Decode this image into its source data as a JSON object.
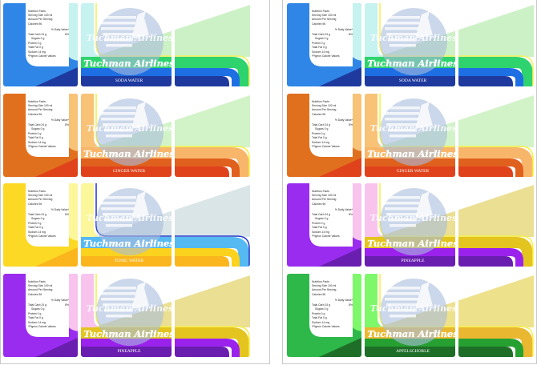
{
  "brand": "Tuchman Airlines",
  "nutrition": {
    "title": "Nutrition Facts",
    "serving": "Serving Size 100 ml",
    "amount": "Amount Per Serving",
    "calories": "Calories 96",
    "daily_value": "% Daily Value*",
    "carb": "Total Carb 24  g",
    "carb_pct": "8%",
    "sugars": "Sugars  0  g",
    "protein": "Protein 0  g",
    "fat": "Total Fat 0 g",
    "sodium": "Sodium 14  mg",
    "footnote": "*Pigeon Calorie Values"
  },
  "labels": [
    {
      "flavor": "SODA WATER",
      "colors": {
        "main": "#2f86e6",
        "light": "#c6f2f0",
        "accent": "#f4f25a",
        "band1": "#2ed36e",
        "band2": "#1f6fe4",
        "dark": "#1f3a9e",
        "tri": "#c8f0c0"
      }
    },
    {
      "flavor": "SODA WATER",
      "colors": {
        "main": "#2f86e6",
        "light": "#c6f2f0",
        "accent": "#f4f25a",
        "band1": "#2ed36e",
        "band2": "#1f6fe4",
        "dark": "#1f3a9e",
        "tri": "#c8f0c0"
      }
    },
    {
      "flavor": "GINGER WATER",
      "colors": {
        "main": "#e0701e",
        "light": "#f8c277",
        "accent": "#f6f040",
        "band1": "#f8b66a",
        "band2": "#e0601e",
        "dark": "#e0421c",
        "tri": "#cdf2c2"
      }
    },
    {
      "flavor": "GINGER WATER",
      "colors": {
        "main": "#e0701e",
        "light": "#f8c277",
        "accent": "#f6f040",
        "band1": "#f8b66a",
        "band2": "#e0601e",
        "dark": "#e0421c",
        "tri": "#cdf2c2"
      }
    },
    {
      "flavor": "TONIC WATER",
      "colors": {
        "main": "#fbd924",
        "light": "#fbf79a",
        "accent": "#2b3fd0",
        "band1": "#55b9f2",
        "band2": "#fbd21e",
        "dark": "#fbb61e",
        "tri": "#d6e2e6"
      }
    },
    {
      "flavor": "PINEAPPLE",
      "colors": {
        "main": "#9a2cf0",
        "light": "#f8c4ee",
        "accent": "#f8f04a",
        "band1": "#e4c41e",
        "band2": "#9a22ec",
        "dark": "#6a1eb0",
        "tri": "#e8dc86"
      }
    },
    {
      "flavor": "PINEAPPLE",
      "colors": {
        "main": "#9a2cf0",
        "light": "#f8c4ee",
        "accent": "#f8f04a",
        "band1": "#e4c41e",
        "band2": "#9a22ec",
        "dark": "#6a1eb0",
        "tri": "#e8dc86"
      }
    },
    {
      "flavor": "APFELSCHORLE",
      "colors": {
        "main": "#2eb84a",
        "light": "#7ef86a",
        "accent": "#f8f04a",
        "band1": "#eab830",
        "band2": "#26a030",
        "dark": "#1e6e28",
        "tri": "#ecde80"
      }
    }
  ]
}
